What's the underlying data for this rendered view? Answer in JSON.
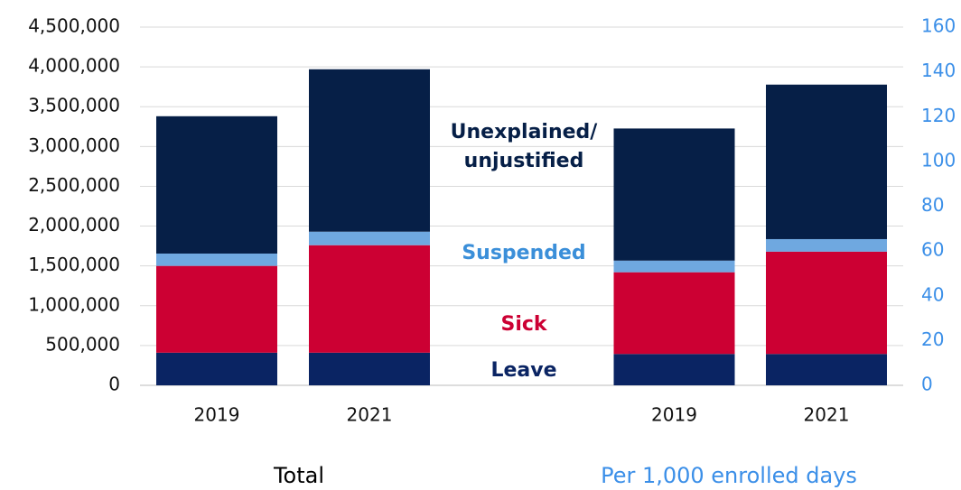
{
  "chart_data": [
    {
      "type": "bar",
      "stacked": true,
      "title": "Total",
      "categories": [
        "2019",
        "2021"
      ],
      "series": [
        {
          "name": "Leave",
          "color": "#0a2463",
          "label_color": "#0a2463",
          "values": [
            410000,
            410000
          ]
        },
        {
          "name": "Sick",
          "color": "#cc0033",
          "label_color": "#cc0033",
          "values": [
            1090000,
            1350000
          ]
        },
        {
          "name": "Suspended",
          "color": "#6fa8e0",
          "label_color": "#3b8fd9",
          "values": [
            155000,
            170000
          ]
        },
        {
          "name": "Unexplained/ unjustified",
          "color": "#061f47",
          "label_color": "#061f47",
          "values": [
            1725000,
            2040000
          ]
        }
      ],
      "ylim": [
        0,
        4500000
      ],
      "yticks": [
        0,
        {
          "value": 500000,
          "label": "500,000"
        },
        {
          "value": 1000000,
          "label": "1,000,000"
        },
        {
          "value": 1500000,
          "label": "1,500,000"
        },
        {
          "value": 2000000,
          "label": "2,000,000"
        },
        {
          "value": 2500000,
          "label": "2,500,000"
        },
        {
          "value": 3000000,
          "label": "3,000,000"
        },
        {
          "value": 3500000,
          "label": "3,500,000"
        },
        {
          "value": 4000000,
          "label": "4,000,000"
        },
        {
          "value": 4500000,
          "label": "4,500,000"
        }
      ],
      "grid": true,
      "tick_color": "#111111"
    },
    {
      "type": "bar",
      "stacked": true,
      "title": "Per 1,000 enrolled days",
      "axis": "y2",
      "categories": [
        "2019",
        "2021"
      ],
      "series": [
        {
          "values": [
            14,
            14
          ]
        },
        {
          "values": [
            36.5,
            45.7
          ]
        },
        {
          "values": [
            5.2,
            5.6
          ]
        },
        {
          "values": [
            59,
            69
          ]
        }
      ],
      "y2lim": [
        0,
        160
      ],
      "y2ticks": [
        0,
        20,
        40,
        60,
        80,
        100,
        120,
        140,
        160
      ],
      "tick_color": "#3b8fe8"
    }
  ]
}
